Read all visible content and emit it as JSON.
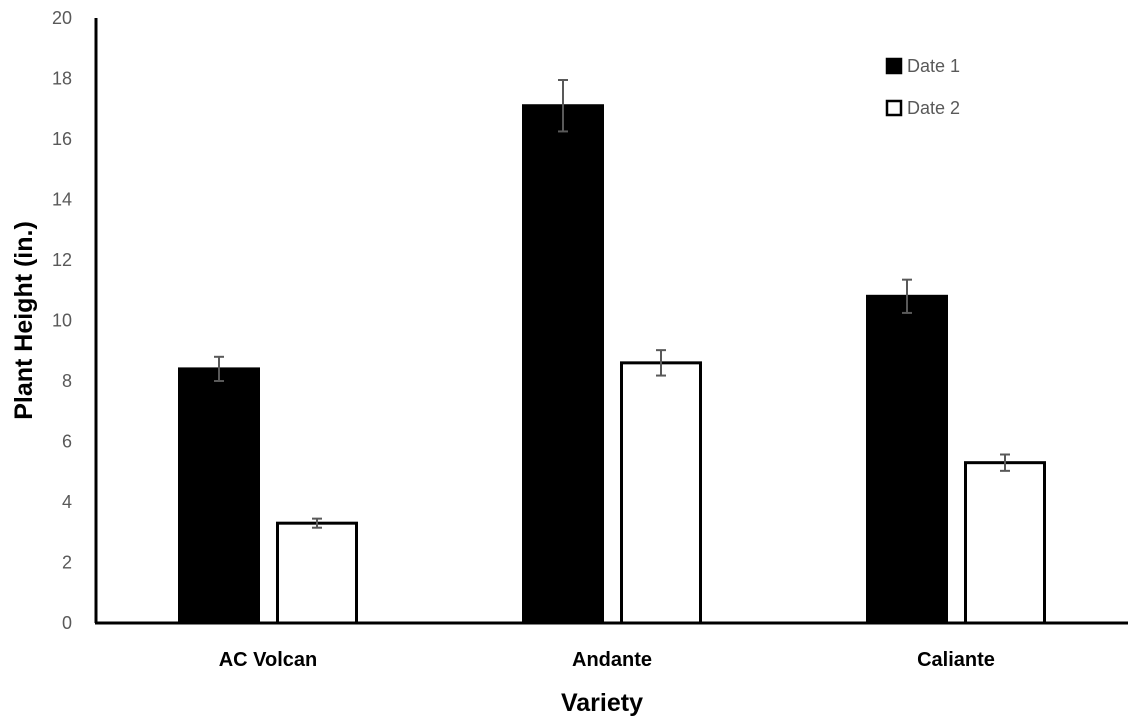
{
  "chart_data": {
    "type": "bar",
    "categories": [
      "AC Volcan",
      "Andante",
      "Caliante"
    ],
    "series": [
      {
        "name": "Date 1",
        "values": [
          8.4,
          17.1,
          10.8
        ],
        "errors": [
          0.4,
          0.85,
          0.55
        ],
        "fill": "#000000"
      },
      {
        "name": "Date 2",
        "values": [
          3.3,
          8.6,
          5.3
        ],
        "errors": [
          0.15,
          0.42,
          0.27
        ],
        "fill": "#ffffff"
      }
    ],
    "title": "",
    "xlabel": "Variety",
    "ylabel": "Plant Height (in.)",
    "ylim": [
      0,
      20
    ],
    "yticks": [
      0,
      2,
      4,
      6,
      8,
      10,
      12,
      14,
      16,
      18,
      20
    ],
    "grid": false,
    "legend_position": "top-right"
  }
}
